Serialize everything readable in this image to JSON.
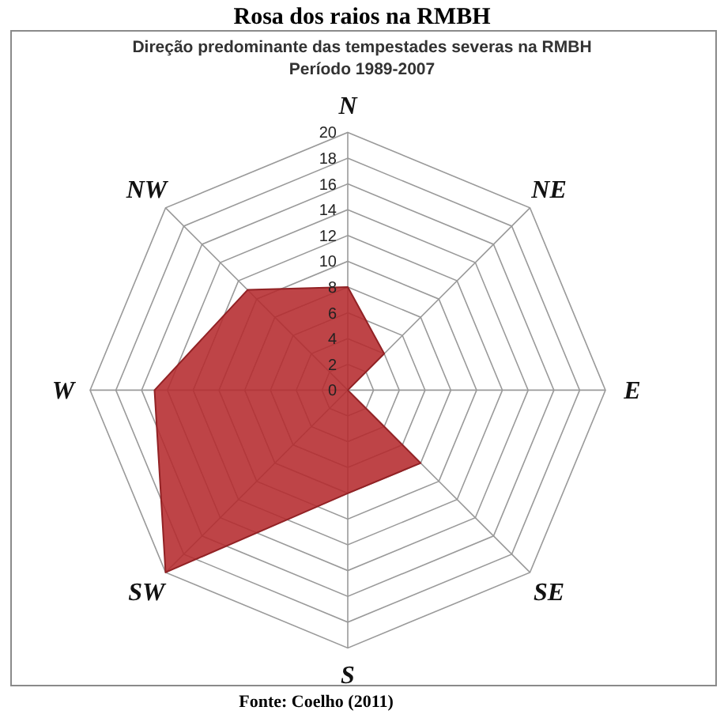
{
  "chart_data": {
    "type": "radar",
    "title": "Rosa dos raios na RMBH",
    "subtitle": "Direção predominante das tempestades severas na RMBH\nPeríodo 1989-2007",
    "annotations": [
      "Fonte: Coelho (2011)"
    ],
    "categories": [
      "N",
      "NE",
      "E",
      "SE",
      "S",
      "SW",
      "W",
      "NW"
    ],
    "series": [
      {
        "color": "#b52a2e",
        "values": [
          8,
          4,
          0,
          8,
          8,
          20,
          15,
          11
        ]
      }
    ],
    "ylim": [
      0,
      20
    ],
    "yticks": [
      0,
      2,
      4,
      6,
      8,
      10,
      12,
      14,
      16,
      18,
      20
    ],
    "grid": true
  }
}
